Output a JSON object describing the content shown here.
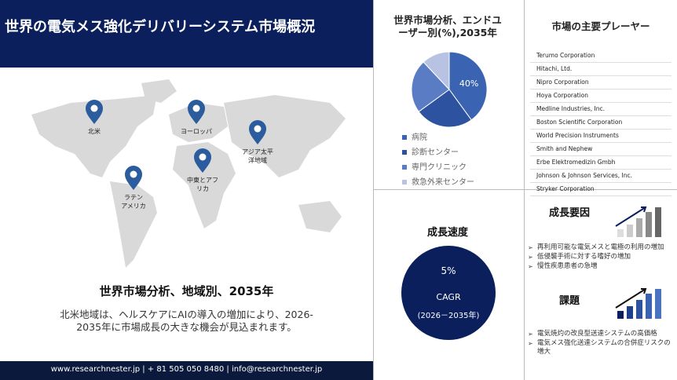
{
  "header": {
    "title": "世界の電気メス強化デリバリーシステム市場概況"
  },
  "map": {
    "regions": [
      {
        "lines": [
          "北米"
        ]
      },
      {
        "lines": [
          "ヨーロッパ"
        ]
      },
      {
        "lines": [
          "アジア太平",
          "洋地域"
        ]
      },
      {
        "lines": [
          "中東とアフ",
          "リカ"
        ]
      },
      {
        "lines": [
          "ラテン",
          "アメリカ"
        ]
      }
    ]
  },
  "regional": {
    "heading": "世界市場分析、地域別、2035年",
    "text": "北米地域は、ヘルスケアにAIの導入の増加により、2026-2035年に市場成長の大きな機会が見込まれます。"
  },
  "footer": {
    "text": "www.researchnester.jp | + 81 505 050 8480 | info@researchnester.jp"
  },
  "chart_data": {
    "type": "pie",
    "title": "世界市場分析、エンドユーザー別(%),2035年",
    "categories": [
      "病院",
      "診断センター",
      "専門クリニック",
      "救急外来センター"
    ],
    "values": [
      40,
      25,
      23,
      12
    ],
    "value_labels": [
      "40%",
      null,
      null,
      null
    ],
    "colors": [
      "#3a63b2",
      "#2d52a0",
      "#5a7cc4",
      "#b8c2e2"
    ]
  },
  "players": {
    "title": "市場の主要プレーヤー",
    "items": [
      "Terumo Corporation",
      "Hitachi, Ltd.",
      "Nipro Corporation",
      "Hoya Corporation",
      "Medline Industries, Inc.",
      "Boston Scientific Corporation",
      "World Precision Instruments",
      "Smith and Nephew",
      "Erbe Elektromedizin Gmbh",
      "Johnson & Johnson Services, Inc.",
      "Stryker Corporation"
    ]
  },
  "growth_rate": {
    "title": "成長速度",
    "value": "5%",
    "label": "CAGR",
    "period": "(2026－2035年)"
  },
  "growth_factors": {
    "title": "成長要因",
    "items": [
      "再利用可能な電気メスと電極の利用の増加",
      "低侵襲手術に対する嗜好の増加",
      "慢性疾患患者の急増"
    ]
  },
  "challenges": {
    "title": "課題",
    "items": [
      "電気焼灼の改良型送達システムの高価格",
      "電気メス強化送達システムの合併症リスクの増大"
    ]
  }
}
